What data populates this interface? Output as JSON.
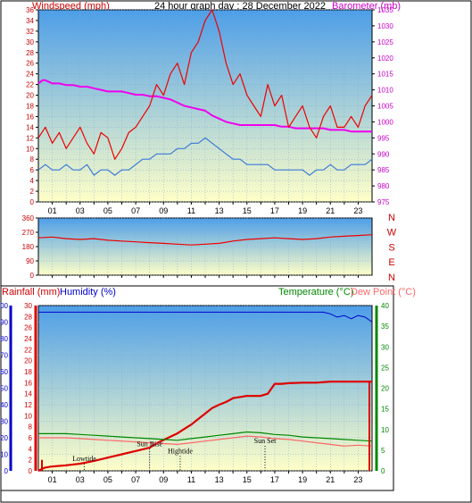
{
  "header": {
    "left": "Windspeed (mph)",
    "center": "24 hour graph day : 28 December 2022",
    "right": "Barometer (mb)"
  },
  "colors": {
    "wind_text": "#cc0000",
    "baro_text": "#cc00cc",
    "rain_text": "#cc0000",
    "humidity_text": "#0000cc",
    "temp_text": "#008800",
    "dew_text": "#ff6666",
    "panel_grad_top": "#4d9ee8",
    "panel_grad_bottom": "#ffffc8",
    "wind_line": "#ee0000",
    "gust_line": "#3a78d8",
    "baro_line": "#ee00ee",
    "humidity_line": "#0000cc",
    "rain_line": "#dd0000",
    "temp_line": "#008800",
    "dew_line": "#ff6666"
  },
  "hour_labels": [
    "01",
    "03",
    "05",
    "07",
    "09",
    "11",
    "13",
    "15",
    "17",
    "19",
    "21",
    "23"
  ],
  "chart_data": [
    {
      "type": "line",
      "name": "wind-panel",
      "x_range": [
        0,
        24
      ],
      "ylim": [
        0,
        36
      ],
      "y_ticks": [
        0,
        2,
        4,
        6,
        8,
        10,
        12,
        14,
        16,
        18,
        20,
        22,
        24,
        26,
        28,
        30,
        32,
        34,
        36
      ],
      "y2lim": [
        975,
        1035
      ],
      "y2_ticks": [
        975,
        980,
        985,
        990,
        995,
        1000,
        1005,
        1010,
        1015,
        1020,
        1025,
        1030,
        1035
      ],
      "xlabel": "",
      "ylabel": "Windspeed (mph)",
      "y2label": "Barometer (mb)",
      "grid": true,
      "series": [
        {
          "key": "barometer",
          "axis": "y2",
          "x": [
            0,
            0.3,
            0.5,
            1.0,
            1.5,
            2.0,
            2.5,
            3.0,
            3.5,
            4.0,
            4.5,
            5.0,
            5.5,
            6.0,
            6.5,
            7.0,
            7.5,
            8.0,
            8.5,
            9.0,
            9.5,
            10.0,
            10.5,
            11.0,
            11.5,
            12.0,
            12.5,
            13.0,
            13.5,
            14.0,
            14.5,
            15.0,
            15.5,
            16.0,
            16.5,
            17.0,
            17.5,
            18.0,
            18.5,
            19.0,
            19.5,
            20.0,
            20.5,
            21.0,
            21.5,
            22.0,
            22.5,
            23.0,
            23.5,
            24.0
          ],
          "y": [
            1012,
            1013,
            1013,
            1012,
            1012,
            1011.5,
            1011.5,
            1011,
            1011,
            1010.5,
            1010,
            1009.5,
            1009.5,
            1009.5,
            1009,
            1008.5,
            1008.5,
            1008,
            1008,
            1007.5,
            1007,
            1006,
            1005,
            1004.5,
            1004,
            1003.5,
            1002,
            1001,
            1000,
            999.5,
            999,
            999,
            999,
            999,
            999,
            999,
            998.5,
            998.5,
            998,
            998,
            998,
            998,
            998,
            997.5,
            997.5,
            997.5,
            997,
            997,
            997,
            997
          ]
        },
        {
          "key": "wind_gust",
          "axis": "y",
          "x": [
            0,
            0.5,
            1,
            1.5,
            2,
            2.5,
            3,
            3.5,
            4,
            4.5,
            5,
            5.5,
            6,
            6.5,
            7,
            7.5,
            8,
            8.5,
            9,
            9.5,
            10,
            10.5,
            11,
            11.5,
            12,
            12.5,
            13,
            13.5,
            14,
            14.5,
            15,
            15.5,
            16,
            16.5,
            17,
            17.5,
            18,
            18.5,
            19,
            19.5,
            20,
            20.5,
            21,
            21.5,
            22,
            22.5,
            23,
            23.5,
            24
          ],
          "y": [
            12,
            14,
            11,
            13,
            10,
            12,
            14,
            11,
            9,
            13,
            12,
            8,
            10,
            13,
            14,
            16,
            18,
            22,
            20,
            24,
            26,
            22,
            28,
            30,
            34,
            36,
            32,
            26,
            22,
            24,
            20,
            18,
            16,
            22,
            18,
            20,
            14,
            16,
            18,
            14,
            12,
            16,
            18,
            14,
            14,
            16,
            14,
            18,
            20
          ]
        },
        {
          "key": "wind_average",
          "axis": "y",
          "x": [
            0,
            0.5,
            1,
            1.5,
            2,
            2.5,
            3,
            3.5,
            4,
            4.5,
            5,
            5.5,
            6,
            6.5,
            7,
            7.5,
            8,
            8.5,
            9,
            9.5,
            10,
            10.5,
            11,
            11.5,
            12,
            12.5,
            13,
            13.5,
            14,
            14.5,
            15,
            15.5,
            16,
            16.5,
            17,
            17.5,
            18,
            18.5,
            19,
            19.5,
            20,
            20.5,
            21,
            21.5,
            22,
            22.5,
            23,
            23.5,
            24
          ],
          "y": [
            6,
            7,
            6,
            6,
            7,
            6,
            6,
            7,
            5,
            6,
            6,
            5,
            6,
            6,
            7,
            8,
            8,
            9,
            9,
            9,
            10,
            10,
            11,
            11,
            12,
            11,
            10,
            9,
            8,
            8,
            7,
            7,
            7,
            7,
            6,
            6,
            6,
            6,
            6,
            5,
            6,
            6,
            7,
            6,
            6,
            7,
            7,
            7,
            8
          ]
        }
      ]
    },
    {
      "type": "line",
      "name": "direction-panel",
      "x_range": [
        0,
        24
      ],
      "ylim": [
        0,
        360
      ],
      "y_ticks": [
        0,
        90,
        180,
        270,
        360
      ],
      "direction_letters": [
        "N",
        "W",
        "S",
        "E",
        "N"
      ],
      "grid": true,
      "series": [
        {
          "key": "wind_direction",
          "x": [
            0,
            1,
            2,
            3,
            4,
            5,
            6,
            7,
            8,
            9,
            10,
            11,
            12,
            13,
            14,
            15,
            16,
            17,
            18,
            19,
            20,
            21,
            22,
            23,
            24
          ],
          "y": [
            235,
            240,
            230,
            225,
            230,
            220,
            215,
            210,
            205,
            200,
            195,
            190,
            195,
            200,
            215,
            225,
            230,
            235,
            230,
            225,
            230,
            240,
            245,
            250,
            255
          ]
        }
      ]
    },
    {
      "type": "line",
      "name": "rain-temp-panel",
      "x_range": [
        0,
        24
      ],
      "ylim_humidity": [
        0,
        100
      ],
      "humidity_ticks": [
        0,
        10,
        20,
        30,
        40,
        50,
        60,
        70,
        80,
        90,
        100
      ],
      "ylim_rain": [
        0,
        30
      ],
      "rain_ticks": [
        0,
        2,
        4,
        6,
        8,
        10,
        12,
        14,
        16,
        18,
        20,
        22,
        24,
        26,
        28,
        30
      ],
      "ylim_temp": [
        0,
        40
      ],
      "temp_ticks": [
        0,
        5,
        10,
        15,
        20,
        25,
        30,
        35,
        40
      ],
      "labels": {
        "rainfall": "Rainfall (mm)",
        "humidity": "Humidity (%)",
        "temperature": "Temperature (°C)",
        "dew_point": "Dew Point (°C)"
      },
      "events": [
        {
          "label": "Lowtide",
          "x": 3.3,
          "y": 1.8
        },
        {
          "label": "Sun Rise",
          "x": 8.0,
          "y": 4.5
        },
        {
          "label": "Hightide",
          "x": 10.2,
          "y": 3.2
        },
        {
          "label": "Sun Set",
          "x": 16.3,
          "y": 5.0
        }
      ],
      "grid": true,
      "series": [
        {
          "key": "humidity",
          "axis": "humidity",
          "x": [
            0,
            2,
            4,
            6,
            8,
            10,
            12,
            14,
            16,
            18,
            20,
            20.5,
            21,
            21.5,
            22,
            22.5,
            23,
            23.5,
            24
          ],
          "y": [
            96,
            96,
            96,
            96,
            96,
            96,
            96,
            96,
            96,
            96,
            96,
            96,
            95,
            93,
            94,
            92,
            94,
            93,
            90
          ]
        },
        {
          "key": "rainfall",
          "axis": "rain",
          "x": [
            0,
            0.3,
            0.5,
            1,
            2,
            3,
            4,
            5,
            6,
            7,
            8,
            8.5,
            9,
            9.5,
            10,
            10.5,
            11,
            11.5,
            12,
            12.5,
            13,
            13.5,
            14,
            14.5,
            15,
            15.5,
            16,
            16.5,
            17,
            17.5,
            18,
            19,
            20,
            21,
            22,
            23,
            24
          ],
          "y": [
            0,
            0.4,
            0.6,
            0.8,
            1.0,
            1.3,
            1.8,
            2.4,
            3.0,
            3.6,
            4.2,
            5.0,
            5.6,
            6.2,
            6.8,
            7.6,
            8.4,
            9.4,
            10.4,
            11.4,
            12.0,
            12.5,
            13.2,
            13.4,
            13.6,
            13.6,
            13.6,
            14.0,
            15.8,
            15.8,
            15.9,
            16.0,
            16.0,
            16.2,
            16.2,
            16.2,
            16.2
          ]
        },
        {
          "key": "temperature",
          "axis": "temp",
          "x": [
            0,
            1,
            2,
            3,
            4,
            5,
            6,
            7,
            8,
            9,
            10,
            11,
            12,
            13,
            14,
            15,
            16,
            17,
            18,
            19,
            20,
            21,
            22,
            23,
            24
          ],
          "y": [
            9,
            9,
            9,
            8.8,
            8.6,
            8.4,
            8.2,
            8.0,
            7.8,
            7.6,
            7.4,
            7.8,
            8.2,
            8.6,
            9.0,
            9.4,
            9.2,
            8.8,
            8.6,
            8.2,
            8.0,
            7.8,
            7.6,
            7.4,
            7.2
          ]
        },
        {
          "key": "dew_point",
          "axis": "temp",
          "x": [
            0,
            1,
            2,
            3,
            4,
            5,
            6,
            7,
            8,
            9,
            10,
            11,
            12,
            13,
            14,
            15,
            16,
            17,
            18,
            19,
            20,
            21,
            22,
            23,
            24
          ],
          "y": [
            8,
            8,
            8,
            7.8,
            7.6,
            7.4,
            7.2,
            7.0,
            6.8,
            6.6,
            6.4,
            6.8,
            7.2,
            7.6,
            8.0,
            8.4,
            8.2,
            7.8,
            7.6,
            7.2,
            6.8,
            6.4,
            6.0,
            6.2,
            6.0
          ]
        }
      ]
    }
  ]
}
